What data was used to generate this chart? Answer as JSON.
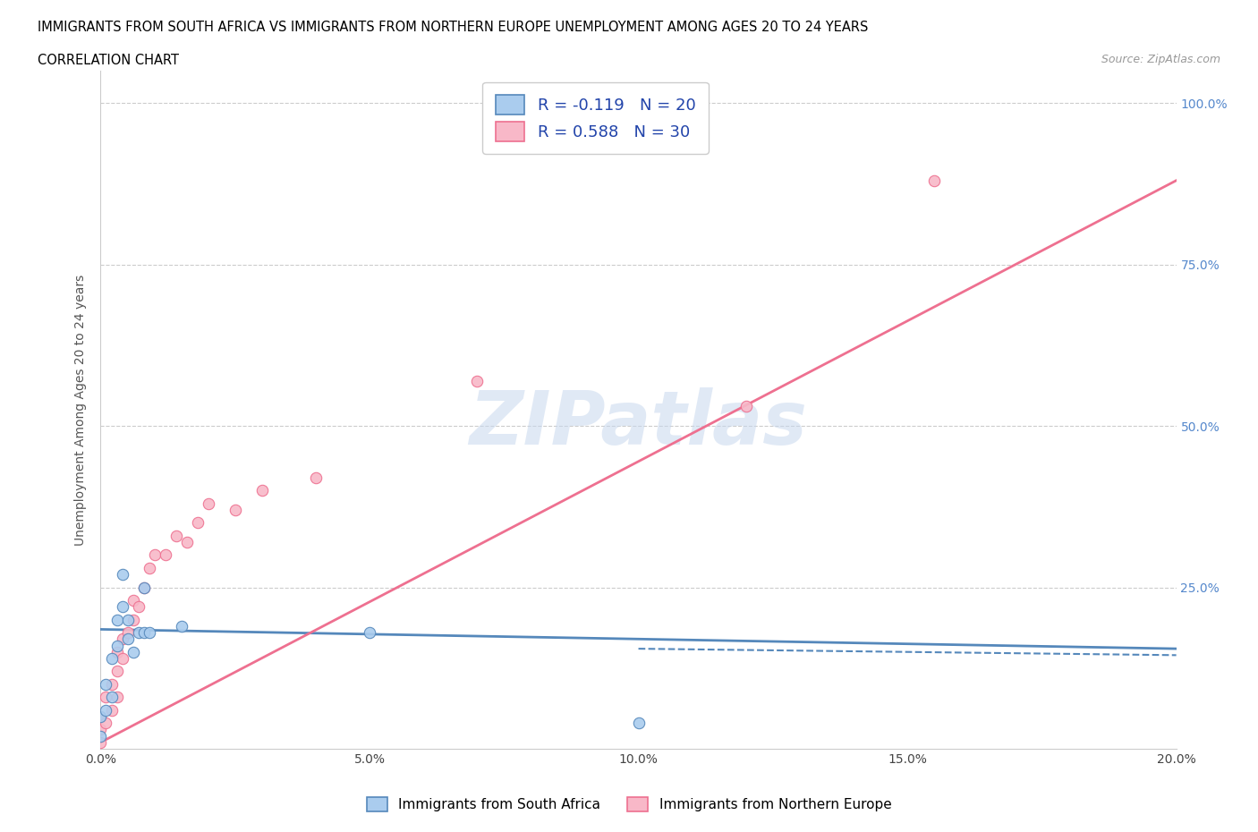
{
  "title_line1": "IMMIGRANTS FROM SOUTH AFRICA VS IMMIGRANTS FROM NORTHERN EUROPE UNEMPLOYMENT AMONG AGES 20 TO 24 YEARS",
  "title_line2": "CORRELATION CHART",
  "source_text": "Source: ZipAtlas.com",
  "ylabel": "Unemployment Among Ages 20 to 24 years",
  "xlim": [
    0.0,
    0.2
  ],
  "ylim": [
    0.0,
    1.05
  ],
  "watermark": "ZIPatlas",
  "south_africa_x": [
    0.0,
    0.0,
    0.001,
    0.001,
    0.002,
    0.002,
    0.003,
    0.003,
    0.004,
    0.004,
    0.005,
    0.005,
    0.006,
    0.007,
    0.008,
    0.008,
    0.009,
    0.015,
    0.05,
    0.1
  ],
  "south_africa_y": [
    0.02,
    0.05,
    0.06,
    0.1,
    0.08,
    0.14,
    0.16,
    0.2,
    0.22,
    0.27,
    0.17,
    0.2,
    0.15,
    0.18,
    0.18,
    0.25,
    0.18,
    0.19,
    0.18,
    0.04
  ],
  "northern_europe_x": [
    0.0,
    0.0,
    0.0,
    0.001,
    0.001,
    0.002,
    0.002,
    0.003,
    0.003,
    0.003,
    0.004,
    0.004,
    0.005,
    0.006,
    0.006,
    0.007,
    0.008,
    0.009,
    0.01,
    0.012,
    0.014,
    0.016,
    0.018,
    0.02,
    0.025,
    0.03,
    0.04,
    0.07,
    0.12,
    0.155
  ],
  "northern_europe_y": [
    0.01,
    0.03,
    0.05,
    0.04,
    0.08,
    0.06,
    0.1,
    0.08,
    0.12,
    0.15,
    0.14,
    0.17,
    0.18,
    0.2,
    0.23,
    0.22,
    0.25,
    0.28,
    0.3,
    0.3,
    0.33,
    0.32,
    0.35,
    0.38,
    0.37,
    0.4,
    0.42,
    0.57,
    0.53,
    0.88
  ],
  "sa_color": "#aaccee",
  "ne_color": "#f8b8c8",
  "sa_line_color": "#5588bb",
  "ne_line_color": "#ee7090",
  "sa_trend_x": [
    0.0,
    0.2
  ],
  "sa_trend_y": [
    0.185,
    0.155
  ],
  "ne_trend_x": [
    0.0,
    0.2
  ],
  "ne_trend_y": [
    0.01,
    0.88
  ],
  "yticks": [
    0.0,
    0.25,
    0.5,
    0.75,
    1.0
  ],
  "ytick_labels_right": [
    "",
    "25.0%",
    "50.0%",
    "75.0%",
    "100.0%"
  ],
  "xticks": [
    0.0,
    0.05,
    0.1,
    0.15,
    0.2
  ],
  "xtick_labels": [
    "0.0%",
    "5.0%",
    "10.0%",
    "15.0%",
    "20.0%"
  ],
  "legend_sa_label": "R = -0.119   N = 20",
  "legend_ne_label": "R = 0.588   N = 30",
  "bottom_legend_sa": "Immigrants from South Africa",
  "bottom_legend_ne": "Immigrants from Northern Europe"
}
